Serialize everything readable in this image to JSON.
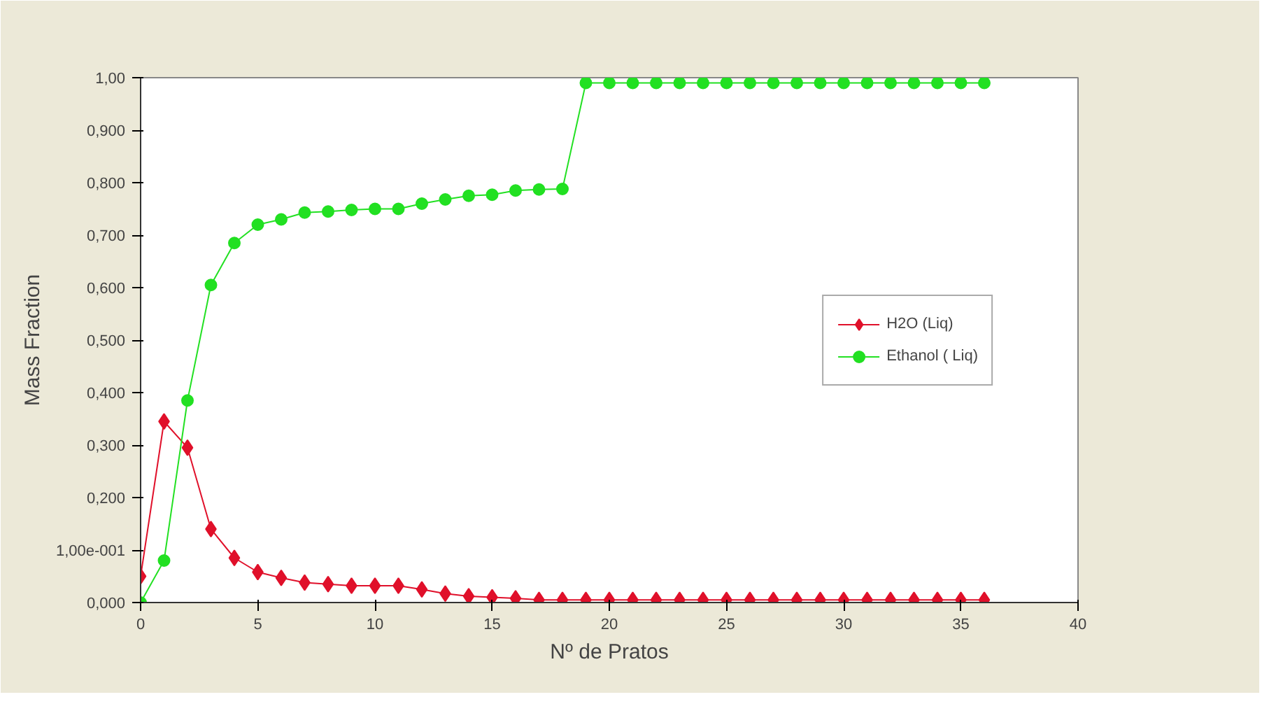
{
  "chart_data": {
    "type": "line",
    "xlabel": "Nº de Pratos",
    "ylabel": "Mass Fraction",
    "x": [
      0,
      1,
      2,
      3,
      4,
      5,
      6,
      7,
      8,
      9,
      10,
      11,
      12,
      13,
      14,
      15,
      16,
      17,
      18,
      19,
      20,
      21,
      22,
      23,
      24,
      25,
      26,
      27,
      28,
      29,
      30,
      31,
      32,
      33,
      34,
      35,
      36
    ],
    "series": [
      {
        "name": "H2O (Liq)",
        "color": "#e0102a",
        "marker": "diamond",
        "values": [
          0.05,
          0.345,
          0.295,
          0.14,
          0.085,
          0.058,
          0.047,
          0.038,
          0.035,
          0.032,
          0.032,
          0.032,
          0.025,
          0.017,
          0.012,
          0.01,
          0.008,
          0.005,
          0.005,
          0.005,
          0.005,
          0.005,
          0.005,
          0.005,
          0.005,
          0.005,
          0.005,
          0.005,
          0.005,
          0.005,
          0.005,
          0.005,
          0.005,
          0.005,
          0.005,
          0.005,
          0.005
        ]
      },
      {
        "name": "Ethanol ( Liq)",
        "color": "#22e022",
        "marker": "circle",
        "values": [
          0.0,
          0.08,
          0.385,
          0.605,
          0.685,
          0.72,
          0.73,
          0.743,
          0.745,
          0.748,
          0.75,
          0.75,
          0.76,
          0.768,
          0.775,
          0.777,
          0.785,
          0.787,
          0.788,
          0.99,
          0.99,
          0.99,
          0.99,
          0.99,
          0.99,
          0.99,
          0.99,
          0.99,
          0.99,
          0.99,
          0.99,
          0.99,
          0.99,
          0.99,
          0.99,
          0.99,
          0.99
        ]
      }
    ],
    "xlim": [
      0,
      40
    ],
    "xticks": [
      0,
      5,
      10,
      15,
      20,
      25,
      30,
      35,
      40
    ],
    "ylim": [
      0,
      1
    ],
    "yticks": [
      {
        "value": 0,
        "label": "0,000"
      },
      {
        "value": 0.1,
        "label": "1,00e-001"
      },
      {
        "value": 0.2,
        "label": "0,200"
      },
      {
        "value": 0.3,
        "label": "0,300"
      },
      {
        "value": 0.4,
        "label": "0,400"
      },
      {
        "value": 0.5,
        "label": "0,500"
      },
      {
        "value": 0.6,
        "label": "0,600"
      },
      {
        "value": 0.7,
        "label": "0,700"
      },
      {
        "value": 0.8,
        "label": "0,800"
      },
      {
        "value": 0.9,
        "label": "0,900"
      },
      {
        "value": 1,
        "label": "1,00"
      }
    ],
    "grid": false,
    "legend": "right",
    "line_style": "solid"
  }
}
